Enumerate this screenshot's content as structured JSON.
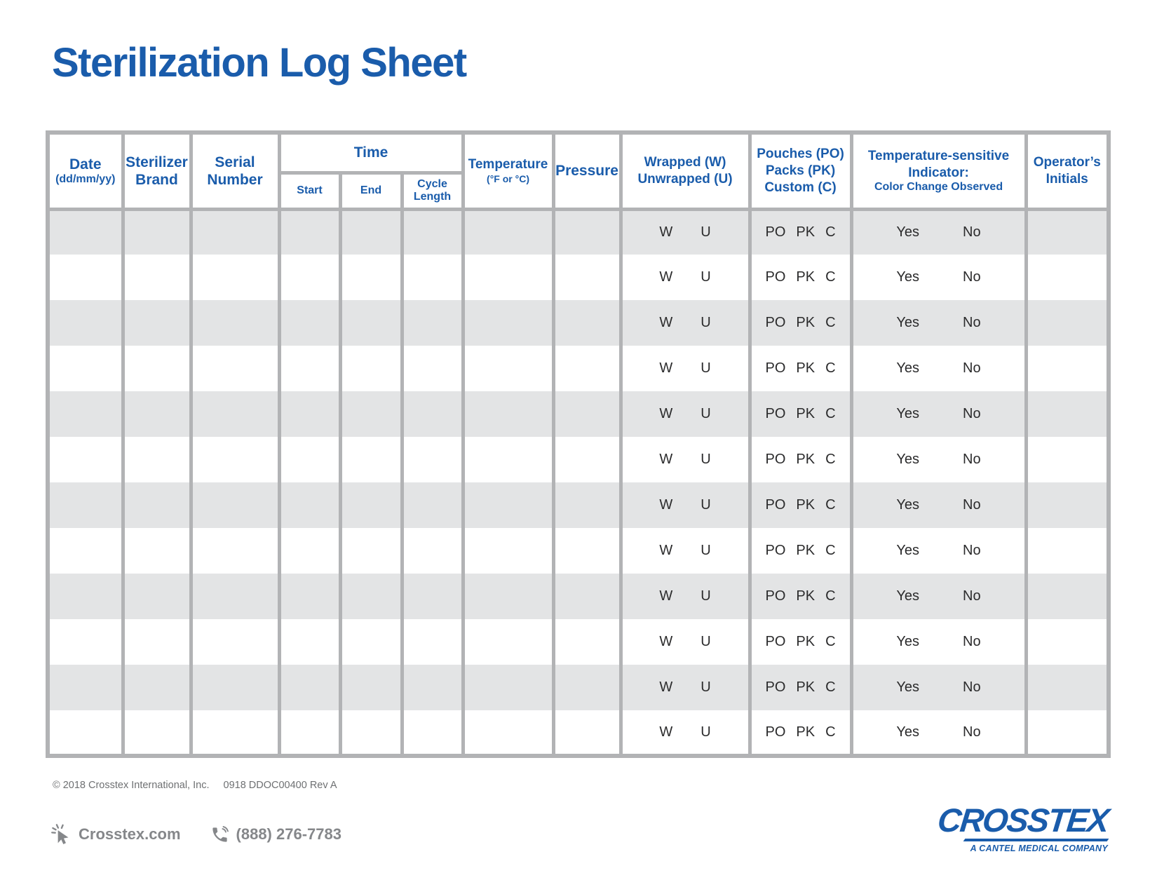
{
  "page": {
    "title": "Sterilization Log Sheet"
  },
  "colors": {
    "brand_blue": "#1a5cab",
    "row_gray": "#e3e4e5",
    "grid_gray": "#b2b3b5",
    "body_text": "#2b2b2c",
    "footer_gray": "#85878a"
  },
  "table": {
    "headers": {
      "date": {
        "line1": "Date",
        "line2": "(dd/mm/yy)"
      },
      "sterilizer": {
        "line1": "Sterilizer",
        "line2": "Brand"
      },
      "serial": {
        "line1": "Serial",
        "line2": "Number"
      },
      "time": {
        "group": "Time",
        "start": "Start",
        "end": "End",
        "cycle_line1": "Cycle",
        "cycle_line2": "Length"
      },
      "temperature": {
        "line1": "Temperature",
        "line2": "(°F or °C)"
      },
      "pressure": {
        "label": "Pressure"
      },
      "wrapped": {
        "line1": "Wrapped (W)",
        "line2": "Unwrapped (U)"
      },
      "pouches": {
        "line1": "Pouches (PO)",
        "line2": "Packs (PK)",
        "line3": "Custom (C)"
      },
      "indicator": {
        "line1": "Temperature-sensitive",
        "line2": "Indicator:",
        "line3": "Color Change Observed"
      },
      "operator": {
        "line1": "Operator’s",
        "line2": "Initials"
      }
    },
    "row_count": 12,
    "row_options": {
      "wrapped": [
        "W",
        "U"
      ],
      "pouches": [
        "PO",
        "PK",
        "C"
      ],
      "indicator": [
        "Yes",
        "No"
      ]
    }
  },
  "footer": {
    "copyright": "© 2018 Crosstex International, Inc.",
    "doc_code": "0918 DDOC00400 Rev A",
    "website": "Crosstex.com",
    "phone": "(888) 276-7783",
    "logo_name": "CROSSTEX",
    "logo_tagline": "A CANTEL MEDICAL COMPANY"
  }
}
